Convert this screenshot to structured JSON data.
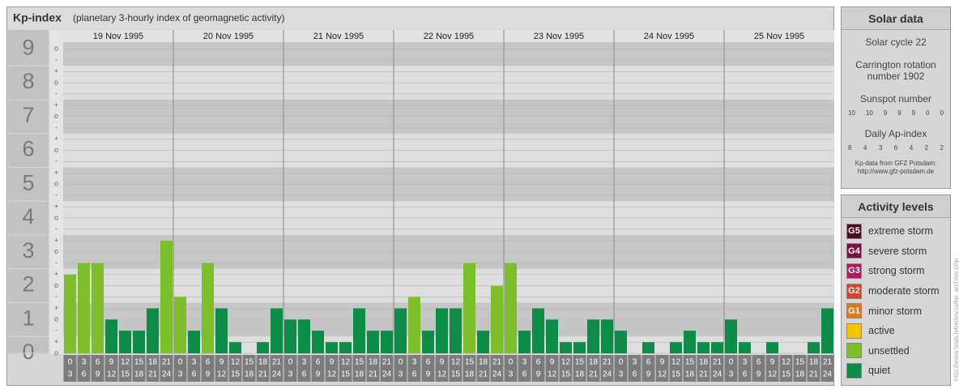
{
  "title": "Kp-index",
  "subtitle": "(planetary 3-hourly index of geomagnetic activity)",
  "chart_data": {
    "type": "bar",
    "days": [
      "19 Nov 1995",
      "20 Nov 1995",
      "21 Nov 1995",
      "22 Nov 1995",
      "23 Nov 1995",
      "24 Nov 1995",
      "25 Nov 1995"
    ],
    "hour_slots": [
      [
        0,
        3
      ],
      [
        3,
        6
      ],
      [
        6,
        9
      ],
      [
        9,
        12
      ],
      [
        12,
        15
      ],
      [
        15,
        18
      ],
      [
        18,
        21
      ],
      [
        21,
        24
      ]
    ],
    "values": [
      2.33,
      2.67,
      2.67,
      1,
      0.67,
      0.67,
      1.33,
      3.33,
      1.67,
      0.67,
      2.67,
      1.33,
      0.33,
      0,
      0.33,
      1.33,
      1,
      1,
      0.67,
      0.33,
      0.33,
      1.33,
      0.67,
      0.67,
      1.33,
      1.67,
      0.67,
      1.33,
      1.33,
      2.67,
      0.67,
      2,
      2.67,
      0.67,
      1.33,
      1,
      0.33,
      0.33,
      1,
      1,
      0.67,
      0,
      0.33,
      0,
      0.33,
      0.67,
      0.33,
      0.33,
      1,
      0.33,
      0,
      0.33,
      0,
      0,
      0.33,
      1.33
    ],
    "colors": [
      "#7dbf2a",
      "#7dbf2a",
      "#7dbf2a",
      "#0c8c46",
      "#0c8c46",
      "#0c8c46",
      "#0c8c46",
      "#7dbf2a",
      "#7dbf2a",
      "#0c8c46",
      "#7dbf2a",
      "#0c8c46",
      "#0c8c46",
      "#0c8c46",
      "#0c8c46",
      "#0c8c46",
      "#0c8c46",
      "#0c8c46",
      "#0c8c46",
      "#0c8c46",
      "#0c8c46",
      "#0c8c46",
      "#0c8c46",
      "#0c8c46",
      "#0c8c46",
      "#7dbf2a",
      "#0c8c46",
      "#0c8c46",
      "#0c8c46",
      "#7dbf2a",
      "#0c8c46",
      "#7dbf2a",
      "#7dbf2a",
      "#0c8c46",
      "#0c8c46",
      "#0c8c46",
      "#0c8c46",
      "#0c8c46",
      "#0c8c46",
      "#0c8c46",
      "#0c8c46",
      "#0c8c46",
      "#0c8c46",
      "#0c8c46",
      "#0c8c46",
      "#0c8c46",
      "#0c8c46",
      "#0c8c46",
      "#0c8c46",
      "#0c8c46",
      "#0c8c46",
      "#0c8c46",
      "#0c8c46",
      "#0c8c46",
      "#0c8c46",
      "#0c8c46"
    ],
    "ylim": [
      0,
      9.2
    ],
    "yticks": [
      0,
      1,
      2,
      3,
      4,
      5,
      6,
      7,
      8,
      9
    ],
    "minor_yticks": [
      {
        "value": 0,
        "label": "o"
      },
      {
        "value": 0.33,
        "label": "+"
      },
      {
        "value": 0.67,
        "label": "-"
      },
      {
        "value": 1,
        "label": "o"
      },
      {
        "value": 1.33,
        "label": "+"
      },
      {
        "value": 1.67,
        "label": "-"
      },
      {
        "value": 2,
        "label": "o"
      },
      {
        "value": 2.33,
        "label": "+"
      },
      {
        "value": 2.67,
        "label": "-"
      },
      {
        "value": 3,
        "label": "o"
      },
      {
        "value": 3.33,
        "label": "+"
      },
      {
        "value": 3.67,
        "label": "-"
      },
      {
        "value": 4,
        "label": "o"
      },
      {
        "value": 4.33,
        "label": "+"
      },
      {
        "value": 4.67,
        "label": "-"
      },
      {
        "value": 5,
        "label": "o"
      },
      {
        "value": 5.33,
        "label": "+"
      },
      {
        "value": 5.67,
        "label": "-"
      },
      {
        "value": 6,
        "label": "o"
      },
      {
        "value": 6.33,
        "label": "+"
      },
      {
        "value": 6.67,
        "label": "-"
      },
      {
        "value": 7,
        "label": "o"
      },
      {
        "value": 7.33,
        "label": "+"
      },
      {
        "value": 7.67,
        "label": "-"
      },
      {
        "value": 8,
        "label": "o"
      },
      {
        "value": 8.33,
        "label": "+"
      },
      {
        "value": 8.67,
        "label": "-"
      },
      {
        "value": 9,
        "label": "o"
      }
    ],
    "grid": true
  },
  "solar_data": {
    "title": "Solar data",
    "solar_cycle": "Solar cycle 22",
    "carrington": "Carrington rotation number 1902",
    "sunspot_title": "Sunspot number",
    "sunspot_numbers": [
      10,
      10,
      9,
      9,
      9,
      0,
      0
    ],
    "ap_title": "Daily Ap-index",
    "ap_values": [
      8,
      4,
      3,
      6,
      4,
      2,
      2
    ],
    "source": "Kp-data from GFZ Potsdam:",
    "source_url": "http://www.gfz-potsdam.de"
  },
  "activity_levels": {
    "title": "Activity levels",
    "items": [
      {
        "badge": "G5",
        "label": "extreme storm",
        "color": "#4f0a26"
      },
      {
        "badge": "G4",
        "label": "severe storm",
        "color": "#7a0f45"
      },
      {
        "badge": "G3",
        "label": "strong storm",
        "color": "#b3175f"
      },
      {
        "badge": "G2",
        "label": "moderate storm",
        "color": "#d8432a"
      },
      {
        "badge": "G1",
        "label": "minor storm",
        "color": "#e07a1c"
      },
      {
        "label": "active",
        "color": "#f5c400"
      },
      {
        "label": "unsettled",
        "color": "#7dbf2a"
      },
      {
        "label": "quiet",
        "color": "#0c8c46"
      }
    ]
  },
  "watermark": "http://www.tesis.lebedev.ru/kp_archive.php"
}
